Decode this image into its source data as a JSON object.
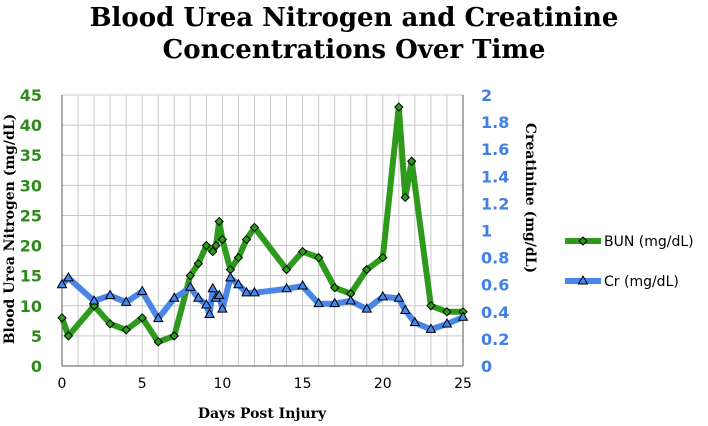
{
  "chart_data": {
    "type": "line",
    "title_line1": "Blood Urea Nitrogen and Creatinine",
    "title_line2": "Concentrations Over Time",
    "xlabel": "Days Post Injury",
    "ylabel_left": "Blood Urea Nitrogen (mg/dL)",
    "ylabel_right": "Creatinine  (mg/dL)",
    "xlim": [
      0,
      25
    ],
    "ylim_left": [
      0,
      45
    ],
    "ylim_right": [
      0,
      2
    ],
    "x_ticks": [
      "0",
      "5",
      "10",
      "15",
      "20",
      "25"
    ],
    "y_left_ticks": [
      "0",
      "5",
      "10",
      "15",
      "20",
      "25",
      "30",
      "35",
      "40",
      "45"
    ],
    "y_right_ticks": [
      "0",
      "0.2",
      "0.4",
      "0.6",
      "0.8",
      "1",
      "1.2",
      "1.4",
      "1.6",
      "1.8",
      "2"
    ],
    "grid": true,
    "legend_position": "right",
    "series": [
      {
        "name": "BUN (mg/dL)",
        "axis": "left",
        "color": "#2e9a1c",
        "marker": "diamond",
        "x": [
          0,
          0.4,
          2,
          3,
          4,
          5,
          6,
          7,
          8,
          8.5,
          9,
          9.4,
          9.6,
          9.8,
          10,
          10.5,
          11,
          11.5,
          12,
          14,
          15,
          16,
          17,
          18,
          19,
          20,
          21,
          21.4,
          21.8,
          23,
          24,
          25
        ],
        "y": [
          8,
          5,
          10,
          7,
          6,
          8,
          4,
          5,
          15,
          17,
          20,
          19,
          20,
          24,
          21,
          16,
          18,
          21,
          23,
          16,
          19,
          18,
          13,
          12,
          16,
          18,
          43,
          28,
          34,
          10,
          9,
          9
        ]
      },
      {
        "name": "Cr (mg/dL)",
        "axis": "right",
        "color": "#4a86e8",
        "marker": "triangle",
        "x": [
          0,
          0.4,
          2,
          3,
          4,
          5,
          6,
          7,
          8,
          8.5,
          9,
          9.2,
          9.4,
          9.6,
          9.8,
          10,
          10.5,
          11,
          11.5,
          12,
          14,
          15,
          16,
          17,
          18,
          19,
          20,
          21,
          21.4,
          22,
          23,
          24,
          25
        ],
        "y": [
          0.6,
          0.65,
          0.48,
          0.52,
          0.47,
          0.55,
          0.35,
          0.5,
          0.58,
          0.5,
          0.45,
          0.38,
          0.57,
          0.5,
          0.52,
          0.42,
          0.65,
          0.6,
          0.54,
          0.54,
          0.57,
          0.59,
          0.46,
          0.46,
          0.48,
          0.42,
          0.51,
          0.5,
          0.41,
          0.32,
          0.27,
          0.31,
          0.36
        ]
      }
    ]
  }
}
